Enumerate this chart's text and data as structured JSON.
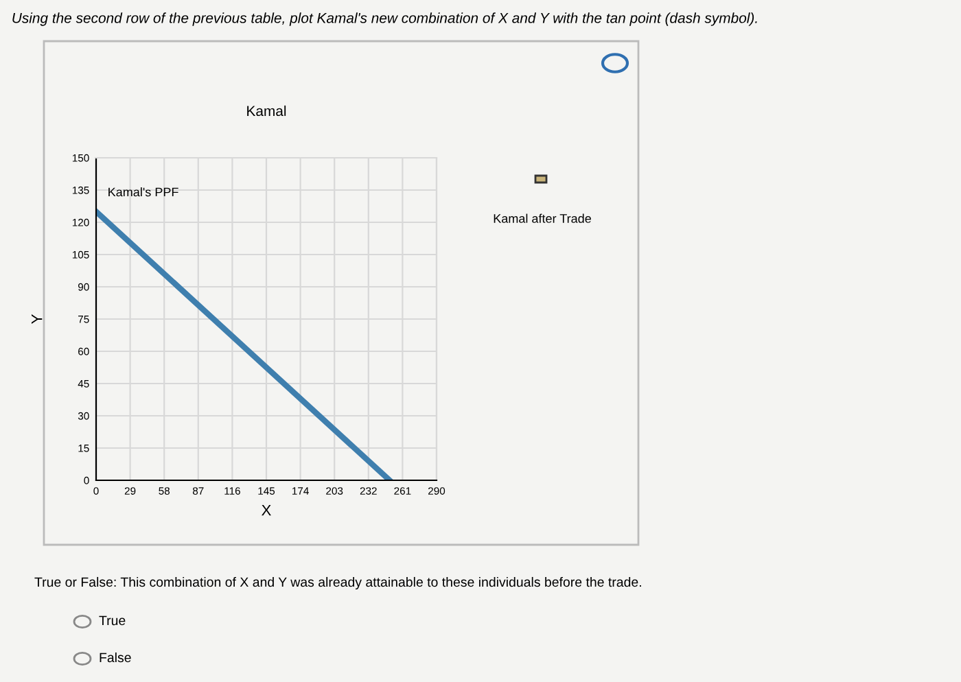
{
  "chart_data": {
    "type": "line",
    "title": "Kamal",
    "subtitle": "Using the second row of the previous table, plot Kamal's new combination of X and Y with the tan point (dash symbol).",
    "xlabel": "X",
    "ylabel": "Y",
    "x": [
      0,
      250
    ],
    "series": [
      {
        "name": "Kamal's PPF",
        "color": "#3f7fae",
        "values": [
          125,
          0
        ]
      }
    ],
    "xlim": [
      0,
      290
    ],
    "xticks": [
      0,
      29,
      58,
      87,
      116,
      145,
      174,
      203,
      232,
      261,
      290
    ],
    "ylim": [
      0,
      150
    ],
    "yticks": [
      0,
      15,
      30,
      45,
      60,
      75,
      90,
      105,
      120,
      135,
      150
    ],
    "grid": true,
    "annotations": [
      "Kamal after Trade",
      "True or False: This combination of X and Y was already attainable to these individuals before the trade.",
      "True",
      "False"
    ]
  }
}
